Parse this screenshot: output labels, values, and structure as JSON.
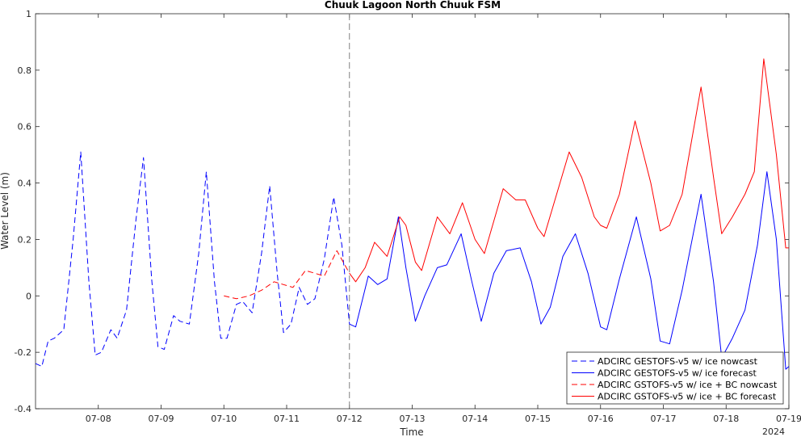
{
  "chart_data": {
    "type": "line",
    "title": "Chuuk Lagoon North Chuuk FSM",
    "xlabel": "Time",
    "ylabel": "Water Level (m)",
    "x_tick_labels": [
      "07-08",
      "07-09",
      "07-10",
      "07-11",
      "07-12",
      "07-13",
      "07-14",
      "07-15",
      "07-16",
      "07-17",
      "07-18",
      "07-19"
    ],
    "x_year_label": "2024",
    "xlim_days": [
      7.0,
      19.0
    ],
    "ylim": [
      -0.4,
      1.0
    ],
    "y_ticks": [
      -0.4,
      -0.2,
      0,
      0.2,
      0.4,
      0.6,
      0.8,
      1
    ],
    "y_tick_labels": [
      "-0.4",
      "-0.2",
      "0",
      "0.2",
      "0.4",
      "0.6",
      "0.8",
      "1"
    ],
    "grid": false,
    "nowcast_forecast_divider_day": 12.0,
    "legend_position": "bottom-right",
    "series": [
      {
        "name": "ADCIRC GESTOFS-v5 w/ ice nowcast",
        "color": "#0000ff",
        "style": "dashed",
        "x": [
          7.0,
          7.1,
          7.2,
          7.3,
          7.45,
          7.6,
          7.72,
          7.85,
          7.95,
          8.05,
          8.2,
          8.3,
          8.45,
          8.6,
          8.72,
          8.85,
          8.95,
          9.05,
          9.2,
          9.3,
          9.45,
          9.6,
          9.72,
          9.85,
          9.95,
          10.05,
          10.2,
          10.3,
          10.45,
          10.6,
          10.73,
          10.85,
          10.95,
          11.07,
          11.2,
          11.33,
          11.45,
          11.6,
          11.75,
          11.88,
          12.0
        ],
        "y": [
          -0.24,
          -0.25,
          -0.16,
          -0.15,
          -0.12,
          0.2,
          0.51,
          0.05,
          -0.21,
          -0.2,
          -0.12,
          -0.15,
          -0.05,
          0.27,
          0.49,
          0.06,
          -0.18,
          -0.19,
          -0.07,
          -0.09,
          -0.1,
          0.15,
          0.44,
          0.05,
          -0.15,
          -0.15,
          -0.03,
          -0.02,
          -0.06,
          0.15,
          0.39,
          0.08,
          -0.13,
          -0.1,
          0.03,
          -0.03,
          -0.01,
          0.13,
          0.35,
          0.18,
          -0.1
        ]
      },
      {
        "name": "ADCIRC GESTOFS-v5 w/ ice forecast",
        "color": "#0000ff",
        "style": "solid",
        "x": [
          12.0,
          12.1,
          12.3,
          12.45,
          12.6,
          12.78,
          12.9,
          13.05,
          13.2,
          13.4,
          13.55,
          13.78,
          13.95,
          14.1,
          14.3,
          14.5,
          14.72,
          14.9,
          15.05,
          15.2,
          15.4,
          15.6,
          15.8,
          16.0,
          16.1,
          16.3,
          16.57,
          16.8,
          16.95,
          17.1,
          17.3,
          17.6,
          17.8,
          17.93,
          18.1,
          18.3,
          18.5,
          18.65,
          18.8,
          18.95,
          19.0
        ],
        "y": [
          -0.1,
          -0.11,
          0.07,
          0.04,
          0.06,
          0.28,
          0.1,
          -0.09,
          0.0,
          0.1,
          0.11,
          0.22,
          0.05,
          -0.09,
          0.08,
          0.16,
          0.17,
          0.05,
          -0.1,
          -0.04,
          0.14,
          0.22,
          0.08,
          -0.11,
          -0.12,
          0.06,
          0.28,
          0.06,
          -0.16,
          -0.17,
          0.02,
          0.36,
          0.05,
          -0.22,
          -0.15,
          -0.05,
          0.18,
          0.44,
          0.2,
          -0.26,
          -0.25
        ]
      },
      {
        "name": "ADCIRC GSTOFS-v5 w/ ice + BC nowcast",
        "color": "#ff0000",
        "style": "dashed",
        "x": [
          10.0,
          10.2,
          10.4,
          10.6,
          10.8,
          10.95,
          11.1,
          11.3,
          11.45,
          11.6,
          11.8,
          12.0
        ],
        "y": [
          0.0,
          -0.01,
          0.0,
          0.02,
          0.05,
          0.04,
          0.03,
          0.09,
          0.08,
          0.07,
          0.16,
          0.08
        ]
      },
      {
        "name": "ADCIRC GSTOFS-v5 w/ ice + BC forecast",
        "color": "#ff0000",
        "style": "solid",
        "x": [
          12.0,
          12.1,
          12.25,
          12.4,
          12.6,
          12.8,
          12.9,
          13.05,
          13.15,
          13.4,
          13.6,
          13.8,
          14.0,
          14.15,
          14.45,
          14.65,
          14.8,
          15.0,
          15.1,
          15.5,
          15.7,
          15.9,
          16.0,
          16.1,
          16.3,
          16.55,
          16.8,
          16.95,
          17.1,
          17.3,
          17.6,
          17.8,
          17.93,
          18.1,
          18.3,
          18.45,
          18.6,
          18.8,
          18.95,
          19.0
        ],
        "y": [
          0.08,
          0.05,
          0.1,
          0.19,
          0.14,
          0.28,
          0.25,
          0.12,
          0.09,
          0.28,
          0.22,
          0.33,
          0.2,
          0.15,
          0.38,
          0.34,
          0.34,
          0.24,
          0.21,
          0.51,
          0.42,
          0.28,
          0.25,
          0.24,
          0.36,
          0.62,
          0.4,
          0.23,
          0.25,
          0.36,
          0.74,
          0.42,
          0.22,
          0.28,
          0.36,
          0.44,
          0.84,
          0.5,
          0.17,
          0.17
        ]
      }
    ]
  }
}
